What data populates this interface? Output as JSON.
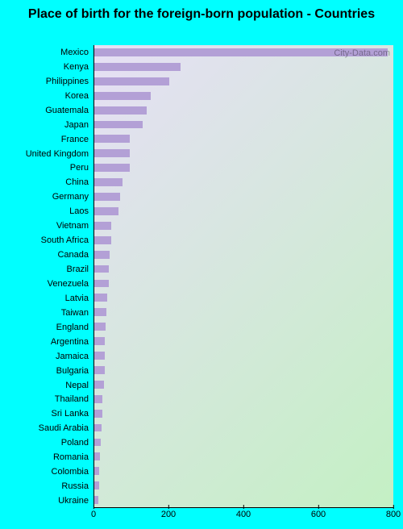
{
  "title": "Place of birth for the foreign-born population - Countries",
  "title_fontsize": 16,
  "watermark": "City-Data.com",
  "chart": {
    "type": "bar-horizontal",
    "background_color": "#00ffff",
    "plot_gradient_from": "#e6dff5",
    "plot_gradient_to": "#c4f0c4",
    "bar_color": "#b3a0d6",
    "bar_fill_ratio": 0.55,
    "xlim": [
      0,
      800
    ],
    "xticks": [
      0,
      200,
      400,
      600,
      800
    ],
    "label_fontsize": 11,
    "tick_fontsize": 11,
    "categories": [
      "Mexico",
      "Kenya",
      "Philippines",
      "Korea",
      "Guatemala",
      "Japan",
      "France",
      "United Kingdom",
      "Peru",
      "China",
      "Germany",
      "Laos",
      "Vietnam",
      "South Africa",
      "Canada",
      "Brazil",
      "Venezuela",
      "Latvia",
      "Taiwan",
      "England",
      "Argentina",
      "Jamaica",
      "Bulgaria",
      "Nepal",
      "Thailand",
      "Sri Lanka",
      "Saudi Arabia",
      "Poland",
      "Romania",
      "Colombia",
      "Russia",
      "Ukraine"
    ],
    "values": [
      785,
      230,
      200,
      150,
      140,
      130,
      95,
      95,
      95,
      75,
      70,
      65,
      45,
      45,
      40,
      38,
      38,
      35,
      32,
      30,
      28,
      28,
      28,
      25,
      22,
      22,
      20,
      18,
      15,
      14,
      12,
      10
    ]
  }
}
